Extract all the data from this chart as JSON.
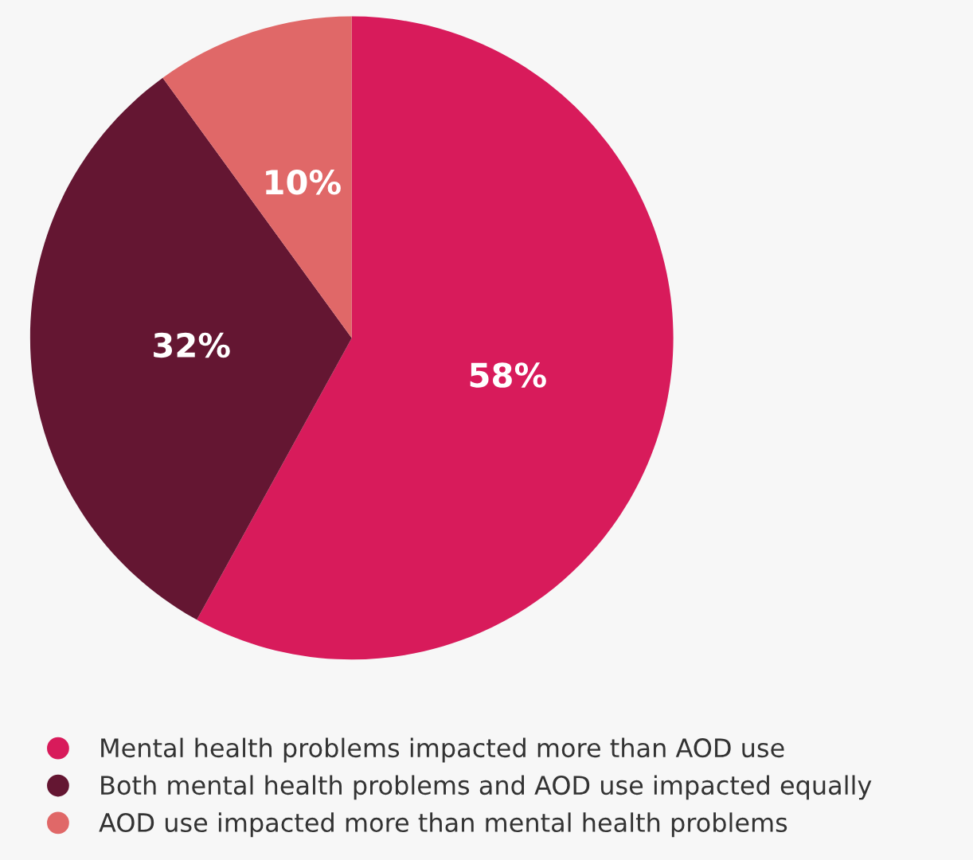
{
  "chart_data": {
    "type": "pie",
    "categories": [
      "Mental health problems impacted more than AOD use",
      "Both mental health problems and AOD use impacted equally",
      "AOD use impacted more than mental health problems"
    ],
    "values": [
      58,
      32,
      10
    ],
    "colors": [
      "#d81b5b",
      "#641632",
      "#e06868"
    ],
    "value_labels": [
      "58%",
      "32%",
      "10%"
    ],
    "legend": "bottom"
  }
}
